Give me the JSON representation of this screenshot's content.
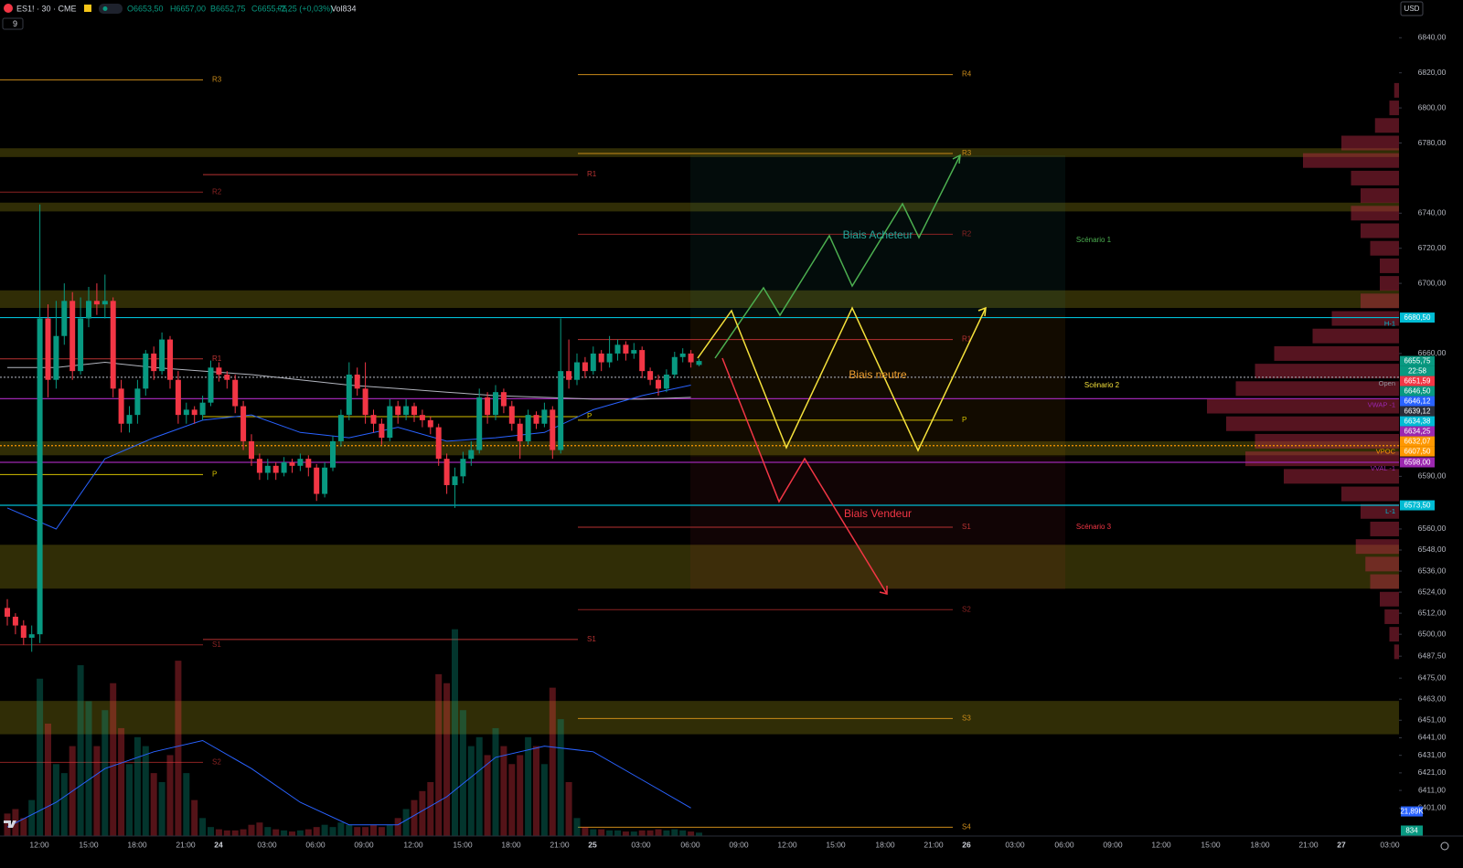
{
  "header": {
    "symbol": "ES1! · 30 · CME",
    "open": "O6653,50",
    "high": "H6657,00",
    "low": "B6652,75",
    "close": "C6655,75",
    "change": "+2,25 (+0,03%)",
    "volume": "Vol834",
    "currency": "USD",
    "indicators": "9",
    "countdown": "22:58"
  },
  "chart_data": {
    "type": "candlestick",
    "ylim": [
      6385,
      6861.5
    ],
    "yticks": [
      {
        "value": 6840,
        "label": "6840,00"
      },
      {
        "value": 6820,
        "label": "6820,00"
      },
      {
        "value": 6800,
        "label": "6800,00"
      },
      {
        "value": 6780,
        "label": "6780,00"
      },
      {
        "value": 6740,
        "label": "6740,00"
      },
      {
        "value": 6720,
        "label": "6720,00"
      },
      {
        "value": 6700,
        "label": "6700,00"
      },
      {
        "value": 6660,
        "label": "6660,00"
      },
      {
        "value": 6590,
        "label": "6590,00"
      },
      {
        "value": 6560,
        "label": "6560,00"
      },
      {
        "value": 6548,
        "label": "6548,00"
      },
      {
        "value": 6536,
        "label": "6536,00"
      },
      {
        "value": 6524,
        "label": "6524,00"
      },
      {
        "value": 6512,
        "label": "6512,00"
      },
      {
        "value": 6500,
        "label": "6500,00"
      },
      {
        "value": 6487.5,
        "label": "6487,50"
      },
      {
        "value": 6475,
        "label": "6475,00"
      },
      {
        "value": 6463,
        "label": "6463,00"
      },
      {
        "value": 6451,
        "label": "6451,00"
      },
      {
        "value": 6441,
        "label": "6441,00"
      },
      {
        "value": 6431,
        "label": "6431,00"
      },
      {
        "value": 6421,
        "label": "6421,00"
      },
      {
        "value": 6411,
        "label": "6411,00"
      },
      {
        "value": 6401,
        "label": "6401,00"
      }
    ],
    "time_labels": [
      "12:00",
      "15:00",
      "18:00",
      "21:00",
      "24",
      "03:00",
      "06:00",
      "09:00",
      "12:00",
      "15:00",
      "18:00",
      "21:00",
      "25",
      "03:00",
      "06:00",
      "09:00",
      "12:00",
      "15:00",
      "18:00",
      "21:00",
      "26",
      "03:00",
      "06:00",
      "09:00",
      "12:00",
      "15:00",
      "18:00",
      "21:00",
      "27",
      "03:00"
    ],
    "up_color": "#089981",
    "down_color": "#f23645",
    "candles": [
      [
        6515,
        6520,
        6505,
        6510
      ],
      [
        6510,
        6512,
        6500,
        6505
      ],
      [
        6505,
        6508,
        6494,
        6498
      ],
      [
        6498,
        6505,
        6490,
        6500
      ],
      [
        6500,
        6745,
        6495,
        6680
      ],
      [
        6680,
        6688,
        6635,
        6645
      ],
      [
        6645,
        6690,
        6640,
        6670
      ],
      [
        6670,
        6700,
        6665,
        6690
      ],
      [
        6690,
        6695,
        6645,
        6650
      ],
      [
        6650,
        6692,
        6648,
        6680
      ],
      [
        6680,
        6698,
        6675,
        6690
      ],
      [
        6690,
        6700,
        6682,
        6688
      ],
      [
        6688,
        6705,
        6680,
        6690
      ],
      [
        6690,
        6692,
        6635,
        6640
      ],
      [
        6640,
        6645,
        6615,
        6620
      ],
      [
        6620,
        6630,
        6615,
        6625
      ],
      [
        6625,
        6645,
        6620,
        6640
      ],
      [
        6640,
        6662,
        6636,
        6660
      ],
      [
        6660,
        6664,
        6645,
        6650
      ],
      [
        6650,
        6672,
        6648,
        6668
      ],
      [
        6668,
        6670,
        6640,
        6645
      ],
      [
        6645,
        6650,
        6620,
        6625
      ],
      [
        6625,
        6632,
        6620,
        6628
      ],
      [
        6628,
        6630,
        6620,
        6625
      ],
      [
        6625,
        6636,
        6622,
        6632
      ],
      [
        6632,
        6656,
        6630,
        6652
      ],
      [
        6652,
        6655,
        6644,
        6648
      ],
      [
        6648,
        6650,
        6640,
        6645
      ],
      [
        6645,
        6648,
        6626,
        6630
      ],
      [
        6630,
        6633,
        6605,
        6610
      ],
      [
        6610,
        6614,
        6596,
        6600
      ],
      [
        6600,
        6603,
        6588,
        6592
      ],
      [
        6592,
        6600,
        6588,
        6596
      ],
      [
        6596,
        6598,
        6588,
        6592
      ],
      [
        6592,
        6601,
        6590,
        6598
      ],
      [
        6598,
        6600,
        6592,
        6596
      ],
      [
        6596,
        6603,
        6593,
        6600
      ],
      [
        6600,
        6602,
        6590,
        6595
      ],
      [
        6595,
        6597,
        6576,
        6580
      ],
      [
        6580,
        6598,
        6578,
        6595
      ],
      [
        6595,
        6613,
        6593,
        6610
      ],
      [
        6610,
        6628,
        6607,
        6625
      ],
      [
        6625,
        6655,
        6622,
        6648
      ],
      [
        6648,
        6652,
        6636,
        6640
      ],
      [
        6640,
        6655,
        6620,
        6625
      ],
      [
        6625,
        6628,
        6615,
        6620
      ],
      [
        6620,
        6623,
        6608,
        6612
      ],
      [
        6612,
        6634,
        6610,
        6630
      ],
      [
        6630,
        6633,
        6620,
        6625
      ],
      [
        6625,
        6634,
        6622,
        6630
      ],
      [
        6630,
        6632,
        6621,
        6625
      ],
      [
        6625,
        6628,
        6618,
        6622
      ],
      [
        6622,
        6624,
        6614,
        6618
      ],
      [
        6618,
        6620,
        6596,
        6600
      ],
      [
        6600,
        6603,
        6580,
        6585
      ],
      [
        6585,
        6595,
        6572,
        6590
      ],
      [
        6590,
        6604,
        6586,
        6600
      ],
      [
        6600,
        6610,
        6596,
        6605
      ],
      [
        6605,
        6640,
        6603,
        6635
      ],
      [
        6635,
        6638,
        6620,
        6625
      ],
      [
        6625,
        6642,
        6622,
        6638
      ],
      [
        6638,
        6640,
        6626,
        6630
      ],
      [
        6630,
        6633,
        6616,
        6620
      ],
      [
        6620,
        6623,
        6600,
        6610
      ],
      [
        6610,
        6628,
        6608,
        6625
      ],
      [
        6625,
        6627,
        6617,
        6620
      ],
      [
        6620,
        6632,
        6618,
        6628
      ],
      [
        6628,
        6630,
        6600,
        6605
      ],
      [
        6605,
        6680,
        6603,
        6650
      ],
      [
        6650,
        6668,
        6640,
        6645
      ],
      [
        6645,
        6660,
        6642,
        6655
      ],
      [
        6655,
        6658,
        6646,
        6650
      ],
      [
        6650,
        6664,
        6648,
        6660
      ],
      [
        6660,
        6662,
        6650,
        6655
      ],
      [
        6655,
        6670,
        6652,
        6660
      ],
      [
        6660,
        6668,
        6656,
        6665
      ],
      [
        6665,
        6667,
        6656,
        6660
      ],
      [
        6660,
        6666,
        6657,
        6662
      ],
      [
        6662,
        6664,
        6646,
        6650
      ],
      [
        6650,
        6652,
        6642,
        6645
      ],
      [
        6645,
        6648,
        6636,
        6640
      ],
      [
        6640,
        6651,
        6638,
        6648
      ],
      [
        6648,
        6661,
        6646,
        6658
      ],
      [
        6658,
        6663,
        6655,
        6660
      ],
      [
        6660,
        6662,
        6652,
        6655
      ],
      [
        6653.5,
        6657,
        6652.75,
        6655.75
      ]
    ],
    "volumes": [
      20,
      24,
      16,
      32,
      140,
      100,
      64,
      56,
      80,
      152,
      120,
      80,
      112,
      136,
      96,
      64,
      88,
      80,
      56,
      48,
      72,
      156,
      56,
      32,
      16,
      8,
      6,
      5,
      5,
      6,
      10,
      12,
      8,
      6,
      5,
      4,
      5,
      6,
      8,
      10,
      8,
      12,
      10,
      8,
      8,
      10,
      8,
      10,
      16,
      24,
      32,
      40,
      48,
      144,
      136,
      184,
      112,
      80,
      88,
      72,
      96,
      80,
      64,
      72,
      88,
      80,
      64,
      132,
      104,
      48,
      16,
      8,
      6,
      6,
      5,
      5,
      4,
      4,
      5,
      5,
      6,
      5,
      6,
      5,
      4,
      3
    ],
    "volume_ma": [
      8,
      30,
      60,
      75,
      85,
      60,
      30,
      10,
      10,
      35,
      70,
      80,
      75,
      50,
      25
    ],
    "volume_tags": [
      {
        "value": 21.89,
        "label": "21,89K",
        "color": "#2962ff"
      },
      {
        "value": 0.834,
        "label": "834",
        "color": "#089981"
      }
    ],
    "averages": [
      {
        "color": "#b2b5be",
        "values": [
          6652,
          6652,
          6655,
          6652,
          6650,
          6648,
          6645,
          6642,
          6640,
          6638,
          6636,
          6635,
          6634,
          6634,
          6635
        ]
      },
      {
        "color": "#2962ff",
        "values": [
          6572,
          6560,
          6600,
          6612,
          6622,
          6625,
          6615,
          6612,
          6618,
          6610,
          6612,
          6615,
          6628,
          6636,
          6642
        ]
      }
    ],
    "zones": [
      [
        6777,
        6772
      ],
      [
        6746,
        6741
      ],
      [
        6696,
        6686
      ],
      [
        6610,
        6602
      ],
      [
        6551,
        6526
      ],
      [
        6462,
        6443
      ]
    ],
    "pivot_sets": [
      [
        {
          "label": "R3",
          "value": 6816,
          "color": "#c98a1a"
        },
        {
          "label": "R2",
          "value": 6752,
          "color": "#8b2323"
        },
        {
          "label": "R1",
          "value": 6657,
          "color": "#b83232"
        },
        {
          "label": "P",
          "value": 6591,
          "color": "#d4c000"
        },
        {
          "label": "S1",
          "value": 6494,
          "color": "#8b2323"
        },
        {
          "label": "S2",
          "value": 6427,
          "color": "#8b2323"
        }
      ],
      [
        {
          "label": "R1",
          "value": 6762,
          "color": "#b83232"
        },
        {
          "label": "P",
          "value": 6624,
          "color": "#d4c000"
        },
        {
          "label": "S1",
          "value": 6497,
          "color": "#b83232"
        }
      ],
      [
        {
          "label": "R4",
          "value": 6819,
          "color": "#c98a1a"
        },
        {
          "label": "R3",
          "value": 6774,
          "color": "#c98a1a"
        },
        {
          "label": "R2",
          "value": 6728,
          "color": "#8b2323"
        },
        {
          "label": "R1",
          "value": 6668,
          "color": "#b83232"
        },
        {
          "label": "P",
          "value": 6622,
          "color": "#d4c000"
        },
        {
          "label": "S1",
          "value": 6561,
          "color": "#b83232"
        },
        {
          "label": "S2",
          "value": 6514,
          "color": "#8b2323"
        },
        {
          "label": "S3",
          "value": 6452,
          "color": "#c98a1a"
        },
        {
          "label": "S4",
          "value": 6390,
          "color": "#c98a1a"
        }
      ]
    ],
    "lines": [
      {
        "label": "H-1",
        "value": 6680.5,
        "color": "#00bcd4",
        "style": "solid"
      },
      {
        "label": "Open",
        "value": 6646.5,
        "color": "#9598a1",
        "style": "dotted"
      },
      {
        "label": "VWAP -1",
        "value": 6634.25,
        "color": "#9c27b0",
        "style": "solid"
      },
      {
        "label": "VPOC",
        "value": 6607.5,
        "color": "#ff9800",
        "style": "dotted"
      },
      {
        "label": "VVAL -1",
        "value": 6598,
        "color": "#9c27b0",
        "style": "solid"
      },
      {
        "label": "L-1",
        "value": 6573.5,
        "color": "#00bcd4",
        "style": "solid"
      }
    ],
    "price_tags": [
      {
        "value": 6680.5,
        "label": "6680,50",
        "color": "#00bcd4"
      },
      {
        "value": 6655.75,
        "label": "6655,75",
        "color": "#089981"
      },
      {
        "value": 6651.59,
        "label": "6651,59",
        "color": "#f23645"
      },
      {
        "value": 6646.5,
        "label": "6646,50",
        "color": "#089981"
      },
      {
        "value": 6646.12,
        "label": "6646,12",
        "color": "#2962ff"
      },
      {
        "value": 6639.12,
        "label": "6639,12",
        "color": "#2a2e39"
      },
      {
        "value": 6634.38,
        "label": "6634,38",
        "color": "#00bcd4"
      },
      {
        "value": 6634.25,
        "label": "6634,25",
        "color": "#9c27b0"
      },
      {
        "value": 6632.07,
        "label": "6632,07",
        "color": "#ff9800"
      },
      {
        "value": 6607.5,
        "label": "6607,50",
        "color": "#ff9800"
      },
      {
        "value": 6598,
        "label": "6598,00",
        "color": "#9c27b0"
      },
      {
        "value": 6573.5,
        "label": "6573,50",
        "color": "#00bcd4"
      }
    ],
    "profile": {
      "prices": [
        6810,
        6800,
        6790,
        6780,
        6770,
        6760,
        6750,
        6740,
        6730,
        6720,
        6710,
        6700,
        6690,
        6680,
        6670,
        6660,
        6650,
        6640,
        6630,
        6620,
        6610,
        6600,
        6590,
        6580,
        6570,
        6560,
        6550,
        6540,
        6530,
        6520,
        6510,
        6500,
        6490
      ],
      "values": [
        5,
        10,
        25,
        60,
        100,
        50,
        40,
        50,
        40,
        30,
        20,
        20,
        40,
        70,
        90,
        130,
        150,
        170,
        200,
        180,
        150,
        160,
        120,
        60,
        40,
        30,
        45,
        35,
        30,
        20,
        15,
        10,
        5
      ]
    },
    "annotations": {
      "buy": "Biais Acheteur",
      "neutral": "Biais neutre",
      "sell": "Biais Vendeur",
      "scenario1": "Scénario 1",
      "scenario2": "Scénario 2",
      "scenario3": "Scénario 3"
    }
  }
}
